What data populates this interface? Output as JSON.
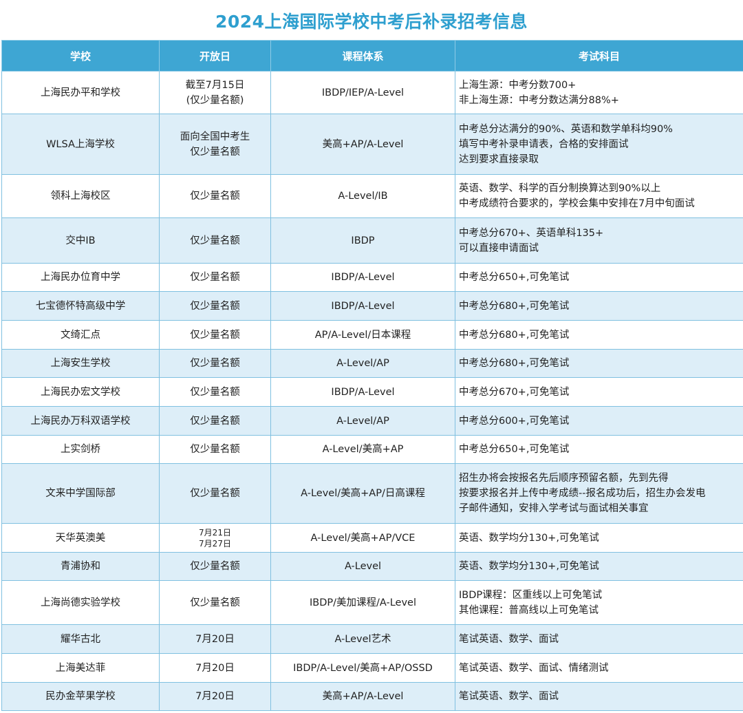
{
  "title": "2024上海国际学校中考后补录招考信息",
  "headers": [
    "学校",
    "开放日",
    "课程体系",
    "考试科目"
  ],
  "rows": [
    {
      "school": "上海民办平和学校",
      "open": [
        "截至7月15日",
        "(仅少量名额)"
      ],
      "curriculum": "IBDP/IEP/A-Level",
      "exam": [
        "上海生源：中考分数700+",
        "非上海生源：中考分数达满分88%+"
      ]
    },
    {
      "school": "WLSA上海学校",
      "open": [
        "面向全国中考生",
        "仅少量名额"
      ],
      "curriculum": "美高+AP/A-Level",
      "exam": [
        "中考总分达满分的90%、英语和数学单科均90%",
        "填写中考补录申请表，合格的安排面试",
        "达到要求直接录取"
      ]
    },
    {
      "school": "领科上海校区",
      "open": [
        "仅少量名额"
      ],
      "curriculum": "A-Level/IB",
      "exam": [
        "英语、数学、科学的百分制换算达到90%以上",
        "中考成绩符合要求的，学校会集中安排在7月中旬面试"
      ]
    },
    {
      "school": "交中IB",
      "open": [
        "仅少量名额"
      ],
      "curriculum": "IBDP",
      "exam": [
        "中考总分670+、英语单科135+",
        "可以直接申请面试"
      ]
    },
    {
      "school": "上海民办位育中学",
      "open": [
        "仅少量名额"
      ],
      "curriculum": "IBDP/A-Level",
      "exam": [
        "中考总分650+,可免笔试"
      ]
    },
    {
      "school": "七宝德怀特高级中学",
      "open": [
        "仅少量名额"
      ],
      "curriculum": "IBDP/A-Level",
      "exam": [
        "中考总分680+,可免笔试"
      ]
    },
    {
      "school": "文绮汇点",
      "open": [
        "仅少量名额"
      ],
      "curriculum": "AP/A-Level/日本课程",
      "exam": [
        "中考总分680+,可免笔试"
      ]
    },
    {
      "school": "上海安生学校",
      "open": [
        "仅少量名额"
      ],
      "curriculum": "A-Level/AP",
      "exam": [
        "中考总分680+,可免笔试"
      ]
    },
    {
      "school": "上海民办宏文学校",
      "open": [
        "仅少量名额"
      ],
      "curriculum": "IBDP/A-Level",
      "exam": [
        "中考总分670+,可免笔试"
      ]
    },
    {
      "school": "上海民办万科双语学校",
      "open": [
        "仅少量名额"
      ],
      "curriculum": "A-Level/AP",
      "exam": [
        "中考总分600+,可免笔试"
      ]
    },
    {
      "school": "上实剑桥",
      "open": [
        "仅少量名额"
      ],
      "curriculum": "A-Level/美高+AP",
      "exam": [
        "中考总分650+,可免笔试"
      ]
    },
    {
      "school": "文来中学国际部",
      "open": [
        "仅少量名额"
      ],
      "curriculum": "A-Level/美高+AP/日高课程",
      "exam": [
        "招生办将会按报名先后顺序预留名额，先到先得",
        "按要求报名并上传中考成绩--报名成功后，招生办会发电",
        "子邮件通知，安排入学考试与面试相关事宜"
      ]
    },
    {
      "school": "天华英澳美",
      "open": [
        "7月21日",
        "7月27日"
      ],
      "curriculum": "A-Level/美高+AP/VCE",
      "exam": [
        "英语、数学均分130+,可免笔试"
      ]
    },
    {
      "school": "青浦协和",
      "open": [
        "仅少量名额"
      ],
      "curriculum": "A-Level",
      "exam": [
        "英语、数学均分130+,可免笔试"
      ]
    },
    {
      "school": "上海尚德实验学校",
      "open": [
        "仅少量名额"
      ],
      "curriculum": "IBDP/美加课程/A-Level",
      "exam": [
        "IBDP课程：区重线以上可免笔试",
        "其他课程：普高线以上可免笔试"
      ]
    },
    {
      "school": "耀华古北",
      "open": [
        "7月20日"
      ],
      "curriculum": "A-Level艺术",
      "exam": [
        "笔试英语、数学、面试"
      ]
    },
    {
      "school": "上海美达菲",
      "open": [
        "7月20日"
      ],
      "curriculum": "IBDP/A-Level/美高+AP/OSSD",
      "exam": [
        "笔试英语、数学、面试、情绪测试"
      ]
    },
    {
      "school": "民办金苹果学校",
      "open": [
        "7月20日"
      ],
      "curriculum": "美高+AP/A-Level",
      "exam": [
        "笔试英语、数学、面试"
      ]
    }
  ],
  "colors": {
    "header": "#3ea6d3",
    "title": "#2e9fcf",
    "alt_row": "#ddeef8",
    "border": "#7fc0e0"
  }
}
